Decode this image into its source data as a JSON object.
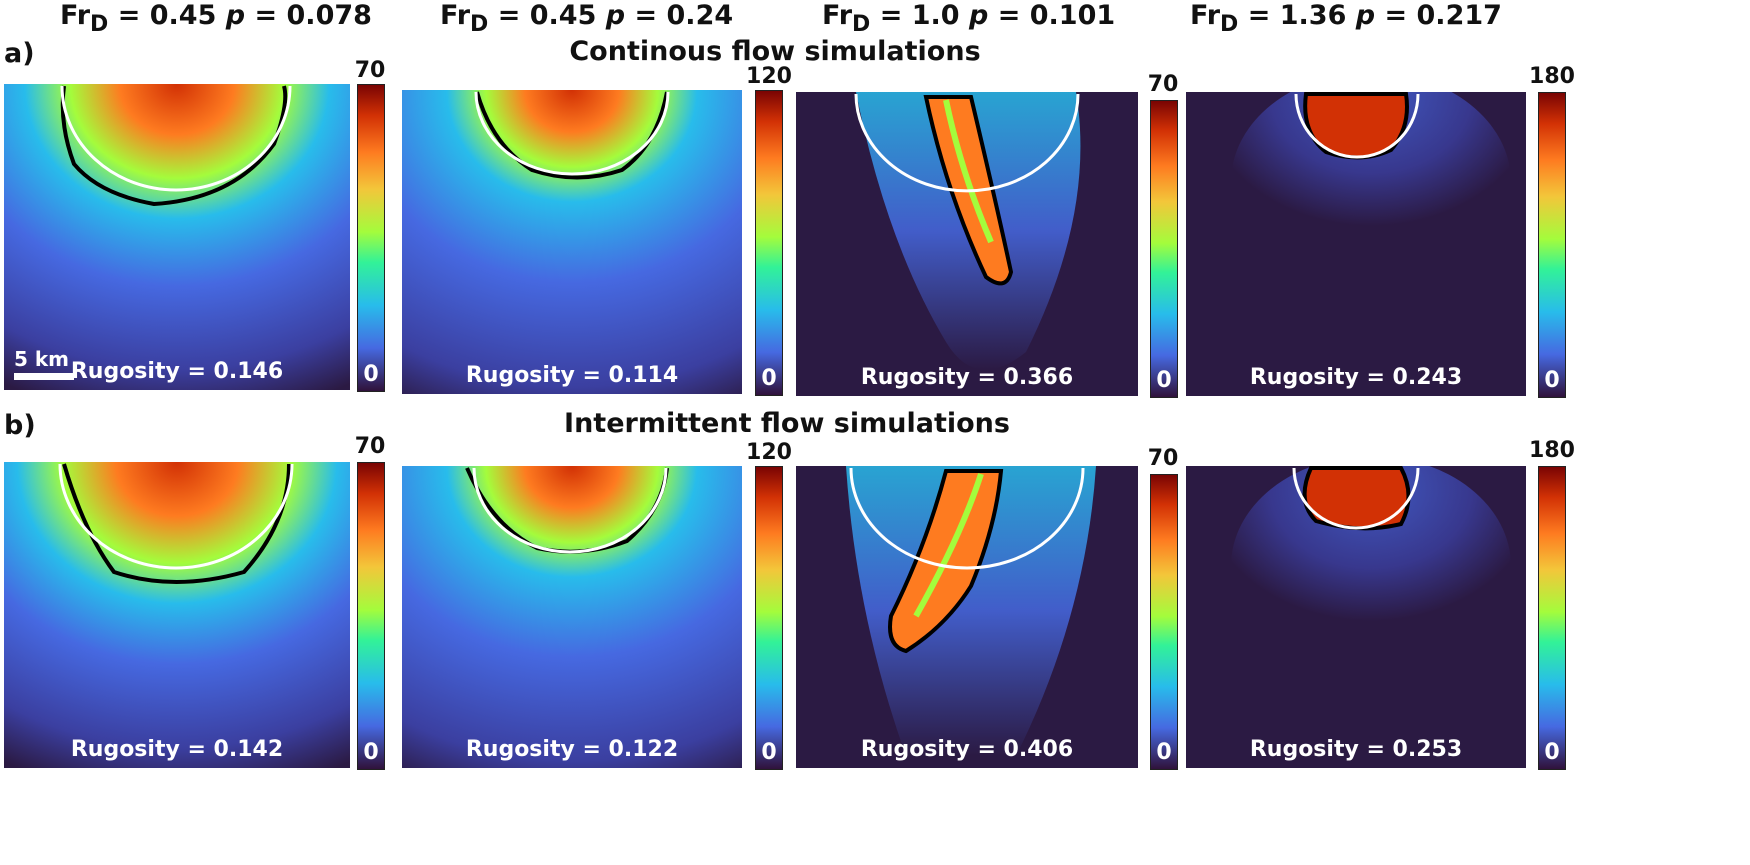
{
  "columns": [
    {
      "fr": "Fr",
      "fr_sub": "D",
      "fr_val": "= 0.45",
      "p_label": "p",
      "p_val": "= 0.078"
    },
    {
      "fr": "Fr",
      "fr_sub": "D",
      "fr_val": "= 0.45",
      "p_label": "p",
      "p_val": "= 0.24"
    },
    {
      "fr": "Fr",
      "fr_sub": "D",
      "fr_val": "= 1.0",
      "p_label": "p",
      "p_val": "= 0.101"
    },
    {
      "fr": "Fr",
      "fr_sub": "D",
      "fr_val": "= 1.36",
      "p_label": "p",
      "p_val": "= 0.217"
    }
  ],
  "rows": [
    {
      "label": "a)",
      "title": "Continous flow simulations",
      "panels": [
        {
          "rugosity": "Rugosity = 0.146",
          "cbar_max": "70",
          "cbar_min": "0"
        },
        {
          "rugosity": "Rugosity = 0.114",
          "cbar_max": "120",
          "cbar_min": "0"
        },
        {
          "rugosity": "Rugosity = 0.366",
          "cbar_max": "70",
          "cbar_min": "0"
        },
        {
          "rugosity": "Rugosity = 0.243",
          "cbar_max": "180",
          "cbar_min": "0"
        }
      ]
    },
    {
      "label": "b)",
      "title": "Intermittent flow simulations",
      "panels": [
        {
          "rugosity": "Rugosity = 0.142",
          "cbar_max": "70",
          "cbar_min": "0"
        },
        {
          "rugosity": "Rugosity = 0.122",
          "cbar_max": "120",
          "cbar_min": "0"
        },
        {
          "rugosity": "Rugosity = 0.406",
          "cbar_max": "70",
          "cbar_min": "0"
        },
        {
          "rugosity": "Rugosity = 0.253",
          "cbar_max": "180",
          "cbar_min": "0"
        }
      ]
    }
  ],
  "scale_bar": "5 km",
  "colors": {
    "background": "#2b1a43",
    "contour": "#000000",
    "circle": "#ffffff"
  }
}
